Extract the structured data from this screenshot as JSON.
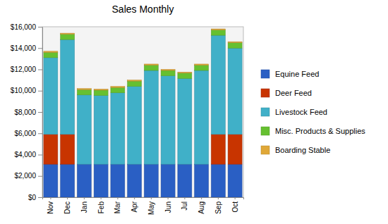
{
  "chart_data": {
    "type": "bar",
    "title": "Sales Monthly",
    "stacked": true,
    "grid": false,
    "legend": "right",
    "categories": [
      "Nov",
      "Dec",
      "Jan",
      "Feb",
      "Mar",
      "Apr",
      "May",
      "Jun",
      "Jul",
      "Aug",
      "Sep",
      "Oct"
    ],
    "ylim": [
      0,
      16000
    ],
    "yticks": [
      {
        "value": 0,
        "label": "$0"
      },
      {
        "value": 2000,
        "label": "$2,000"
      },
      {
        "value": 4000,
        "label": "$4,000"
      },
      {
        "value": 6000,
        "label": "$6,000"
      },
      {
        "value": 8000,
        "label": "$8,000"
      },
      {
        "value": 10000,
        "label": "$10,000"
      },
      {
        "value": 12000,
        "label": "$12,000"
      },
      {
        "value": 14000,
        "label": "$14,000"
      },
      {
        "value": 16000,
        "label": "$16,000"
      }
    ],
    "series": [
      {
        "name": "Equine Feed",
        "color": "#2a5fc4",
        "values": [
          3100,
          3100,
          3100,
          3100,
          3100,
          3100,
          3100,
          3100,
          3100,
          3100,
          3100,
          3100
        ]
      },
      {
        "name": "Deer Feed",
        "color": "#c83400",
        "values": [
          2800,
          2800,
          0,
          0,
          0,
          0,
          0,
          0,
          0,
          0,
          2800,
          2800
        ]
      },
      {
        "name": "Livestock Feed",
        "color": "#40b0c8",
        "values": [
          7200,
          8900,
          6500,
          6450,
          6700,
          7300,
          8800,
          8300,
          8050,
          8800,
          9300,
          8100
        ]
      },
      {
        "name": "Misc. Products & Supplies",
        "color": "#66c030",
        "values": [
          500,
          500,
          500,
          500,
          500,
          500,
          500,
          500,
          500,
          500,
          500,
          500
        ]
      },
      {
        "name": "Boarding Stable",
        "color": "#e0a838",
        "values": [
          100,
          100,
          100,
          100,
          100,
          100,
          100,
          100,
          100,
          100,
          100,
          100
        ]
      }
    ]
  }
}
